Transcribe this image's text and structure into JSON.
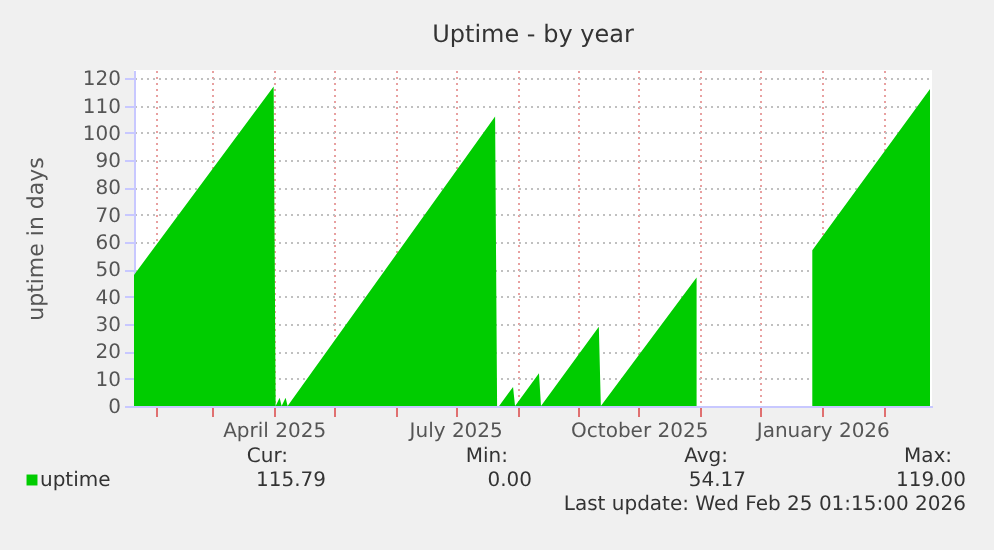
{
  "chart_data": {
    "type": "area",
    "title": "Uptime - by year",
    "ylabel": "uptime in days",
    "x": [
      "2025-01-21",
      "2025-04-01",
      "2025-04-02",
      "2025-04-04",
      "2025-04-05",
      "2025-04-07",
      "2025-04-08",
      "2025-07-21",
      "2025-07-22",
      "2025-07-23",
      "2025-07-30",
      "2025-07-31",
      "2025-08-12",
      "2025-08-13",
      "2025-09-11",
      "2025-09-12",
      "2025-10-30",
      "2025-10-31",
      "2025-12-26",
      "2025-12-27",
      "2026-02-24"
    ],
    "series": [
      {
        "name": "uptime",
        "color": "#00cc00",
        "values": [
          48,
          117,
          0,
          3,
          0,
          3,
          0,
          106,
          0,
          0,
          7,
          0,
          12,
          0,
          29,
          0,
          47,
          null,
          null,
          57,
          116
        ]
      }
    ],
    "xlim": [
      "2025-01-21",
      "2026-02-25"
    ],
    "xticks": [
      {
        "value": "2025-02-01",
        "label": null
      },
      {
        "value": "2025-03-01",
        "label": null
      },
      {
        "value": "2025-04-01",
        "label": "April 2025"
      },
      {
        "value": "2025-05-01",
        "label": null
      },
      {
        "value": "2025-06-01",
        "label": null
      },
      {
        "value": "2025-07-01",
        "label": "July 2025"
      },
      {
        "value": "2025-08-01",
        "label": null
      },
      {
        "value": "2025-09-01",
        "label": null
      },
      {
        "value": "2025-10-01",
        "label": "October 2025"
      },
      {
        "value": "2025-11-01",
        "label": null
      },
      {
        "value": "2025-12-01",
        "label": null
      },
      {
        "value": "2026-01-01",
        "label": "January 2026"
      },
      {
        "value": "2026-02-01",
        "label": null
      }
    ],
    "ylim": [
      0,
      123
    ],
    "yticks": [
      0,
      10,
      20,
      30,
      40,
      50,
      60,
      70,
      80,
      90,
      100,
      110,
      120
    ],
    "grid": true,
    "legend": "bottom left",
    "annotations": [
      "Cur:",
      "115.79",
      "Min:",
      "0.00",
      "Avg:",
      "54.17",
      "Max:",
      "119.00",
      "Last update: Wed Feb 25 01:15:00 2026"
    ]
  }
}
